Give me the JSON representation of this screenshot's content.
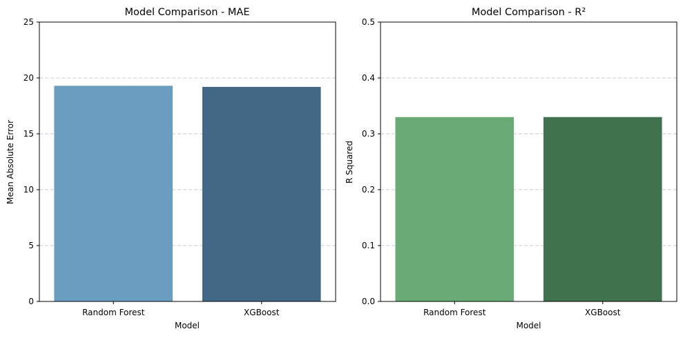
{
  "chart_data": [
    {
      "type": "bar",
      "title": "Model Comparison - MAE",
      "xlabel": "Model",
      "ylabel": "Mean Absolute Error",
      "categories": [
        "Random Forest",
        "XGBoost"
      ],
      "values": [
        19.3,
        19.2
      ],
      "ylim": [
        0,
        25
      ],
      "yticks": [
        0,
        5,
        10,
        15,
        20,
        25
      ],
      "grid": true,
      "colors": [
        "#6b9dc1",
        "#426886"
      ]
    },
    {
      "type": "bar",
      "title": "Model Comparison - R²",
      "xlabel": "Model",
      "ylabel": "R Squared",
      "categories": [
        "Random Forest",
        "XGBoost"
      ],
      "values": [
        0.33,
        0.33
      ],
      "ylim": [
        0,
        0.5
      ],
      "yticks": [
        "0.0",
        "0.1",
        "0.2",
        "0.3",
        "0.4",
        "0.5"
      ],
      "grid": true,
      "colors": [
        "#6aaa76",
        "#41724e"
      ]
    }
  ]
}
